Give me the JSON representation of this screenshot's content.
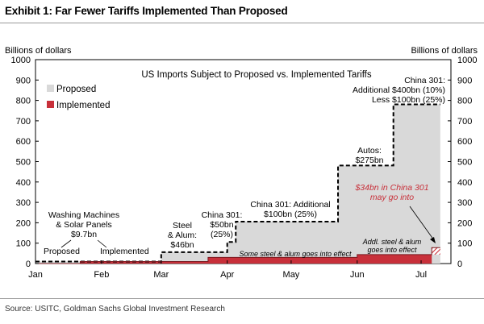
{
  "header": {
    "exhibit_title": "Exhibit 1: Far Fewer Tariffs Implemented Than Proposed"
  },
  "footer": {
    "source": "Source: USITC, Goldman Sachs Global Investment Research"
  },
  "chart_data": {
    "type": "area",
    "title": "US Imports Subject to Proposed vs. Implemented Tariffs",
    "ylabel_left": "Billions of dollars",
    "ylabel_right": "Billions of dollars",
    "ylim": [
      0,
      1000
    ],
    "yticks": [
      0,
      100,
      200,
      300,
      400,
      500,
      600,
      700,
      800,
      900,
      1000
    ],
    "xlim": [
      "2018-01-01",
      "2018-07-15"
    ],
    "xticks": [
      {
        "label": "Jan",
        "date": "2018-01-01"
      },
      {
        "label": "Feb",
        "date": "2018-02-01"
      },
      {
        "label": "Mar",
        "date": "2018-03-01"
      },
      {
        "label": "Apr",
        "date": "2018-04-01"
      },
      {
        "label": "May",
        "date": "2018-05-01"
      },
      {
        "label": "Jun",
        "date": "2018-06-01"
      },
      {
        "label": "Jul",
        "date": "2018-07-01"
      }
    ],
    "legend": {
      "placement": "top-left",
      "entries": [
        {
          "name": "Proposed",
          "color": "#d9d9d9"
        },
        {
          "name": "Implemented",
          "color": "#c8303a"
        }
      ]
    },
    "series": [
      {
        "name": "Proposed",
        "color": "#d9d9d9",
        "points": [
          {
            "x": "2018-01-01",
            "y": 9.7
          },
          {
            "x": "2018-03-01",
            "y": 55.7
          },
          {
            "x": "2018-04-01",
            "y": 105.7
          },
          {
            "x": "2018-04-05",
            "y": 205.7
          },
          {
            "x": "2018-05-23",
            "y": 480.7
          },
          {
            "x": "2018-06-18",
            "y": 780.7
          },
          {
            "x": "2018-07-10",
            "y": 780.7
          }
        ]
      },
      {
        "name": "Implemented",
        "color": "#c8303a",
        "points": [
          {
            "x": "2018-01-01",
            "y": 0
          },
          {
            "x": "2018-01-22",
            "y": 9.7
          },
          {
            "x": "2018-03-23",
            "y": 30
          },
          {
            "x": "2018-06-01",
            "y": 44
          },
          {
            "x": "2018-07-06",
            "y": 78
          },
          {
            "x": "2018-07-10",
            "y": 78
          }
        ]
      }
    ],
    "annotations": {
      "washing": [
        "Washing Machines",
        "& Solar Panels",
        "$9.7bn"
      ],
      "proposed_lbl": "Proposed",
      "implemented_lbl": "Implemented",
      "steel": [
        "Steel",
        "& Alum:",
        "$46bn"
      ],
      "china50": [
        "China 301:",
        "$50bn",
        "(25%)"
      ],
      "china100": [
        "China 301: Additional",
        "$100bn (25%)"
      ],
      "autos": [
        "Autos:",
        "$275bn"
      ],
      "china400": [
        "China 301:",
        "Additional $400bn (10%)",
        "Less $100bn (25%)"
      ],
      "china34": [
        "$34bn in China 301",
        "may go into"
      ],
      "steel_effect": "Some steel & alum goes into effect",
      "addl_steel": [
        "Addl. steel & alum",
        "goes into effect"
      ]
    }
  }
}
